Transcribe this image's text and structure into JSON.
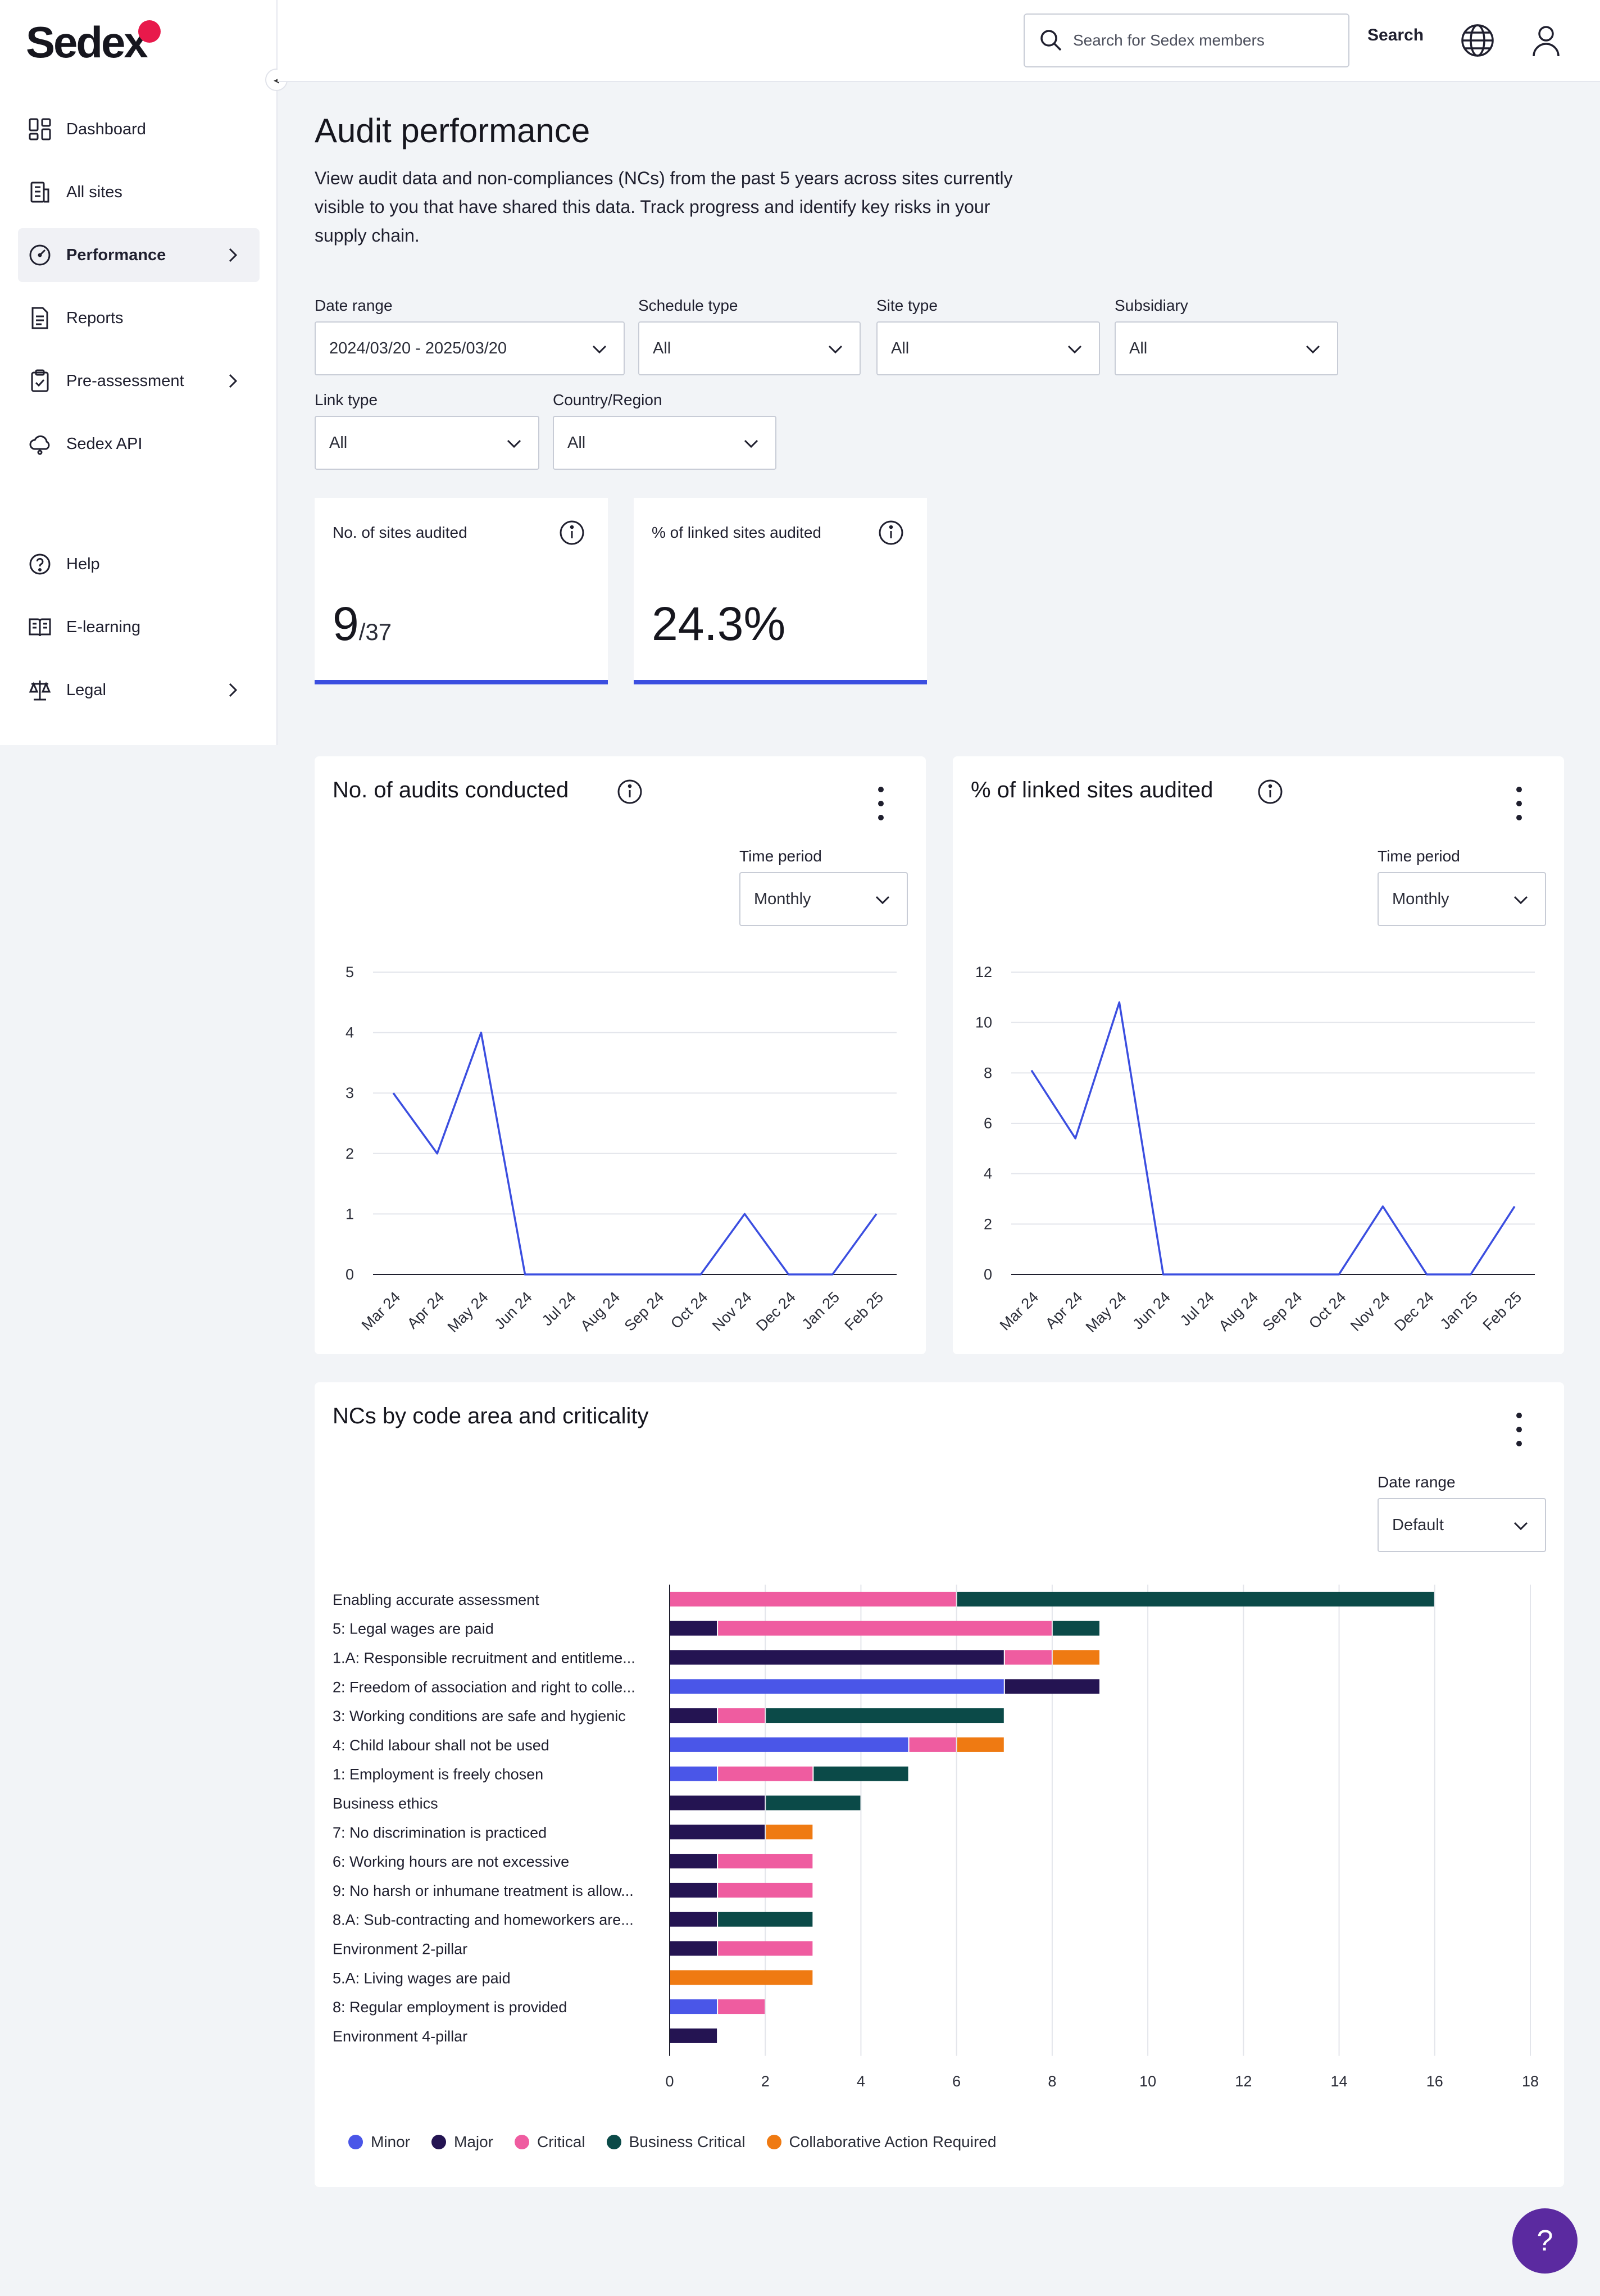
{
  "brand": {
    "logo_text": "Sedex",
    "accent": "#e8194b",
    "primary": "#3b4ee0"
  },
  "sidebar": {
    "items": [
      {
        "label": "Dashboard",
        "icon": "dashboard-icon"
      },
      {
        "label": "All sites",
        "icon": "building-icon"
      },
      {
        "label": "Performance",
        "icon": "gauge-icon",
        "active": true,
        "has_children": true
      },
      {
        "label": "Reports",
        "icon": "document-icon"
      },
      {
        "label": "Pre-assessment",
        "icon": "clipboard-icon",
        "has_children": true
      },
      {
        "label": "Sedex API",
        "icon": "cloud-icon"
      },
      {
        "label": "Help",
        "icon": "help-circle-icon"
      },
      {
        "label": "E-learning",
        "icon": "book-icon"
      },
      {
        "label": "Legal",
        "icon": "scales-icon",
        "has_children": true
      }
    ]
  },
  "header": {
    "search_placeholder": "Search for Sedex members",
    "search_button": "Search"
  },
  "page": {
    "title": "Audit performance",
    "description": "View audit data and non-compliances (NCs) from the past 5 years across sites currently visible to you that have shared this data. Track progress and identify key risks in your supply chain."
  },
  "filters": {
    "date_range": {
      "label": "Date range",
      "value": "2024/03/20 - 2025/03/20"
    },
    "schedule_type": {
      "label": "Schedule type",
      "value": "All"
    },
    "site_type": {
      "label": "Site type",
      "value": "All"
    },
    "subsidiary": {
      "label": "Subsidiary",
      "value": "All"
    },
    "link_type": {
      "label": "Link type",
      "value": "All"
    },
    "country_region": {
      "label": "Country/Region",
      "value": "All"
    }
  },
  "kpis": {
    "sites_audited": {
      "label": "No. of sites audited",
      "value": "9",
      "denominator": "/37"
    },
    "linked_pct": {
      "label": "% of linked sites audited",
      "value": "24.3%"
    }
  },
  "audits_card": {
    "title": "No. of audits conducted",
    "time_period_label": "Time period",
    "time_period_value": "Monthly"
  },
  "linked_card": {
    "title": "% of linked sites audited",
    "time_period_label": "Time period",
    "time_period_value": "Monthly"
  },
  "nc_card": {
    "title": "NCs by code area and criticality",
    "date_range_label": "Date range",
    "date_range_value": "Default"
  },
  "chart_data": [
    {
      "type": "line",
      "x": [
        "Mar 24",
        "Apr 24",
        "May 24",
        "Jun 24",
        "Jul 24",
        "Aug 24",
        "Sep 24",
        "Oct 24",
        "Nov 24",
        "Dec 24",
        "Jan 25",
        "Feb 25"
      ],
      "series": [
        {
          "values": [
            3,
            2,
            4,
            0,
            0,
            0,
            0,
            0,
            1,
            0,
            0,
            1
          ],
          "color": "#3b4ee0"
        }
      ],
      "yticks": [
        0,
        1,
        2,
        3,
        4,
        5
      ],
      "ylim": [
        0,
        5
      ],
      "grid": true
    },
    {
      "type": "line",
      "x": [
        "Mar 24",
        "Apr 24",
        "May 24",
        "Jun 24",
        "Jul 24",
        "Aug 24",
        "Sep 24",
        "Oct 24",
        "Nov 24",
        "Dec 24",
        "Jan 25",
        "Feb 25"
      ],
      "series": [
        {
          "values": [
            8.1,
            5.4,
            10.8,
            0,
            0,
            0,
            0,
            0,
            2.7,
            0,
            0,
            2.7
          ],
          "color": "#3b4ee0"
        }
      ],
      "yticks": [
        0,
        2,
        4,
        6,
        8,
        10,
        12
      ],
      "ylim": [
        0,
        12
      ],
      "grid": true
    },
    {
      "type": "bar",
      "orientation": "horizontal",
      "stacked": true,
      "categories": [
        "Enabling accurate assessment",
        "5: Legal wages are paid",
        "1.A: Responsible recruitment and entitleme...",
        "2: Freedom of association and right to colle...",
        "3: Working conditions are safe and hygienic",
        "4: Child labour shall not be used",
        "1: Employment is freely chosen",
        "Business ethics",
        "7: No discrimination is practiced",
        "6: Working hours are not excessive",
        "9: No harsh or inhumane treatment is allow...",
        "8.A: Sub-contracting and homeworkers are...",
        "Environment 2-pillar",
        "5.A: Living wages are paid",
        "8: Regular employment is provided",
        "Environment 4-pillar"
      ],
      "series": [
        {
          "name": "Minor",
          "color": "#4a56e8",
          "values": [
            0,
            0,
            0,
            7,
            0,
            5,
            1,
            0,
            0,
            0,
            0,
            0,
            0,
            0,
            1,
            0
          ]
        },
        {
          "name": "Major",
          "color": "#241452",
          "values": [
            0,
            1,
            7,
            2,
            1,
            0,
            0,
            2,
            2,
            1,
            1,
            1,
            1,
            0,
            0,
            1
          ]
        },
        {
          "name": "Critical",
          "color": "#ef5ca0",
          "values": [
            6,
            7,
            1,
            0,
            1,
            1,
            2,
            0,
            0,
            2,
            2,
            0,
            2,
            0,
            1,
            0
          ]
        },
        {
          "name": "Business Critical",
          "color": "#0b4a48",
          "values": [
            10,
            1,
            0,
            0,
            5,
            0,
            2,
            2,
            0,
            0,
            0,
            2,
            0,
            0,
            0,
            0
          ]
        },
        {
          "name": "Collaborative Action Required",
          "color": "#ef7a12",
          "values": [
            0,
            0,
            1,
            0,
            0,
            1,
            0,
            0,
            1,
            0,
            0,
            0,
            0,
            3,
            0,
            0
          ]
        }
      ],
      "xticks": [
        0,
        2,
        4,
        6,
        8,
        10,
        12,
        14,
        16,
        18
      ],
      "xlim": [
        0,
        18
      ],
      "grid": true,
      "legend": "bottom-left"
    }
  ]
}
